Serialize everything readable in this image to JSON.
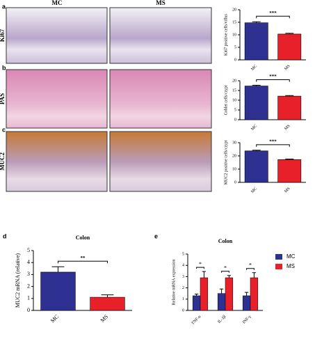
{
  "panel_labels": [
    "a",
    "b",
    "c",
    "d",
    "e"
  ],
  "image_columns": [
    "MC",
    "MS"
  ],
  "image_rows": [
    "Ki67",
    "PAS",
    "MUC2"
  ],
  "chart_data": [
    {
      "type": "bar",
      "categories": [
        "MC",
        "MS"
      ],
      "values": [
        14.8,
        10.3
      ],
      "errors": [
        0.4,
        0.3
      ],
      "colors": [
        "#2e3192",
        "#e8202a"
      ],
      "ylim": [
        0,
        20
      ],
      "yticks": [
        0,
        5,
        10,
        15,
        20
      ],
      "ylabel": "Ki67 positive cells/villus",
      "significance": "***"
    },
    {
      "type": "bar",
      "categories": [
        "MC",
        "MS"
      ],
      "values": [
        17.3,
        12.1
      ],
      "errors": [
        0.4,
        0.3
      ],
      "colors": [
        "#2e3192",
        "#e8202a"
      ],
      "ylim": [
        0,
        20
      ],
      "yticks": [
        0,
        5,
        10,
        15,
        20
      ],
      "ylabel": "Goblet cells/crypt",
      "significance": "***"
    },
    {
      "type": "bar",
      "categories": [
        "MC",
        "MS"
      ],
      "values": [
        23.8,
        17.2
      ],
      "errors": [
        0.5,
        0.4
      ],
      "colors": [
        "#2e3192",
        "#e8202a"
      ],
      "ylim": [
        0,
        30
      ],
      "yticks": [
        0,
        10,
        20,
        30
      ],
      "ylabel": "MUC2 positive cells/crypt",
      "significance": "***"
    },
    {
      "type": "bar",
      "title": "Colon",
      "categories": [
        "MC",
        "MS"
      ],
      "values": [
        3.2,
        1.1
      ],
      "errors": [
        0.45,
        0.2
      ],
      "colors": [
        "#2e3192",
        "#e8202a"
      ],
      "ylim": [
        0,
        5
      ],
      "yticks": [
        0,
        1,
        2,
        3,
        4,
        5
      ],
      "ylabel": "MUC2 mRNA (relative)",
      "significance": "**"
    },
    {
      "type": "grouped-bar",
      "title": "Colon",
      "categories": [
        "TNF-α",
        "IL-1β",
        "INF-γ"
      ],
      "series": [
        {
          "name": "MC",
          "color": "#2e3192",
          "values": [
            1.3,
            1.5,
            1.3
          ],
          "errors": [
            0.15,
            0.4,
            0.3
          ]
        },
        {
          "name": "MS",
          "color": "#e8202a",
          "values": [
            2.9,
            2.9,
            2.9
          ],
          "errors": [
            0.55,
            0.2,
            0.45
          ]
        }
      ],
      "ylim": [
        0,
        5
      ],
      "yticks": [
        0,
        1,
        2,
        3,
        4,
        5
      ],
      "ylabel": "Relative mRNA expression",
      "significance": [
        "*",
        "*",
        "*"
      ]
    }
  ]
}
